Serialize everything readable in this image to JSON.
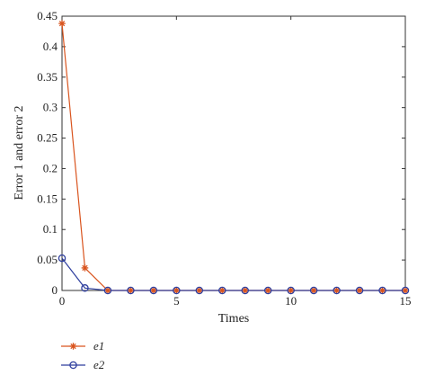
{
  "chart_data": {
    "type": "line",
    "title": "",
    "xlabel": "Times",
    "ylabel": "Error 1 and error 2",
    "xlim": [
      0,
      15
    ],
    "ylim": [
      0,
      0.45
    ],
    "x_ticks": [
      "0",
      "5",
      "10",
      "15"
    ],
    "y_ticks": [
      "0",
      "0.05",
      "0.1",
      "0.15",
      "0.2",
      "0.25",
      "0.3",
      "0.35",
      "0.4",
      "0.45"
    ],
    "grid": false,
    "legend_position": "below-left",
    "x": [
      0,
      1,
      2,
      3,
      4,
      5,
      6,
      7,
      8,
      9,
      10,
      11,
      12,
      13,
      14,
      15
    ],
    "series": [
      {
        "name": "e1",
        "marker": "asterisk",
        "color": "#d9541e",
        "values": [
          0.438,
          0.037,
          0,
          0,
          0,
          0,
          0,
          0,
          0,
          0,
          0,
          0,
          0,
          0,
          0,
          0
        ]
      },
      {
        "name": "e2",
        "marker": "circle",
        "color": "#2f3f9e",
        "values": [
          0.053,
          0.004,
          0,
          0,
          0,
          0,
          0,
          0,
          0,
          0,
          0,
          0,
          0,
          0,
          0,
          0
        ]
      }
    ]
  }
}
